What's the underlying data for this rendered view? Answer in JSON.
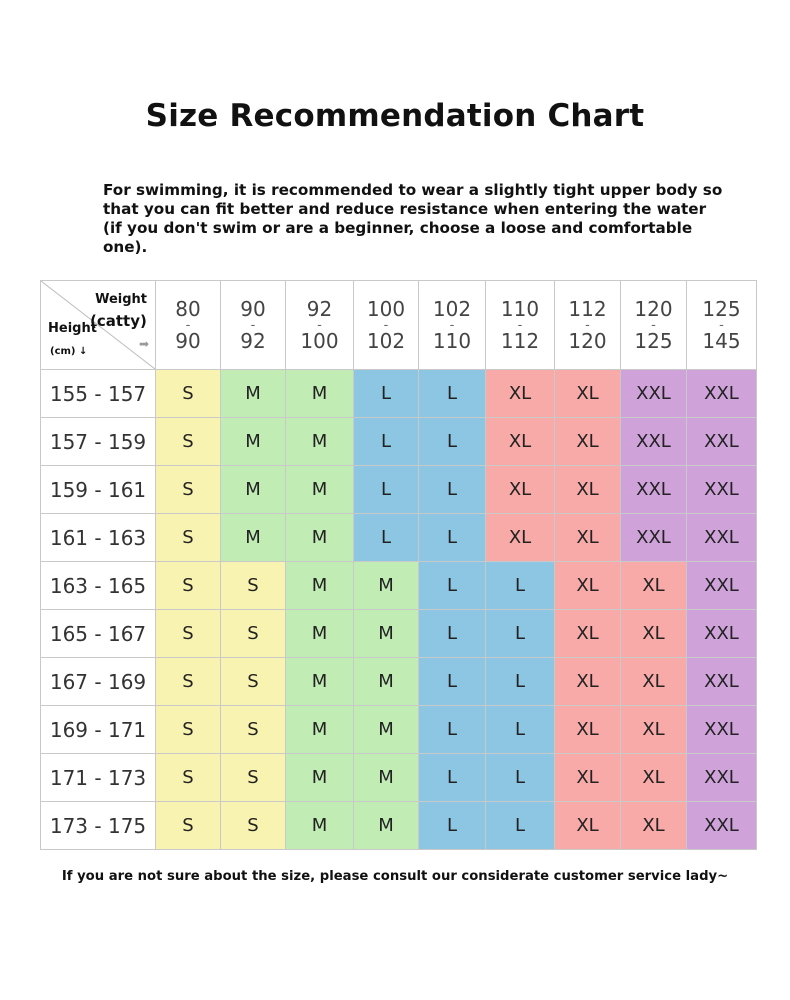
{
  "title": "Size Recommendation Chart",
  "intro": "For swimming, it is recommended to wear a slightly tight upper body so that you can fit better and reduce resistance when entering the water (if you don't swim or are a beginner, choose a loose and comfortable one).",
  "table": {
    "corner": {
      "weight_label": "Weight",
      "weight_unit": "(catty)",
      "height_label": "Height",
      "height_unit": "(cm) ↓",
      "arrow": "➡"
    },
    "weight_columns": [
      {
        "low": "80",
        "high": "90"
      },
      {
        "low": "90",
        "high": "92"
      },
      {
        "low": "92",
        "high": "100"
      },
      {
        "low": "100",
        "high": "102"
      },
      {
        "low": "102",
        "high": "110"
      },
      {
        "low": "110",
        "high": "112"
      },
      {
        "low": "112",
        "high": "120"
      },
      {
        "low": "120",
        "high": "125"
      },
      {
        "low": "125",
        "high": "145"
      }
    ],
    "rows": [
      {
        "height": "155 - 157",
        "sizes": [
          "S",
          "M",
          "M",
          "L",
          "L",
          "XL",
          "XL",
          "XXL",
          "XXL"
        ]
      },
      {
        "height": "157 - 159",
        "sizes": [
          "S",
          "M",
          "M",
          "L",
          "L",
          "XL",
          "XL",
          "XXL",
          "XXL"
        ]
      },
      {
        "height": "159 - 161",
        "sizes": [
          "S",
          "M",
          "M",
          "L",
          "L",
          "XL",
          "XL",
          "XXL",
          "XXL"
        ]
      },
      {
        "height": "161 - 163",
        "sizes": [
          "S",
          "M",
          "M",
          "L",
          "L",
          "XL",
          "XL",
          "XXL",
          "XXL"
        ]
      },
      {
        "height": "163 - 165",
        "sizes": [
          "S",
          "S",
          "M",
          "M",
          "L",
          "L",
          "XL",
          "XL",
          "XXL"
        ]
      },
      {
        "height": "165 - 167",
        "sizes": [
          "S",
          "S",
          "M",
          "M",
          "L",
          "L",
          "XL",
          "XL",
          "XXL"
        ]
      },
      {
        "height": "167 - 169",
        "sizes": [
          "S",
          "S",
          "M",
          "M",
          "L",
          "L",
          "XL",
          "XL",
          "XXL"
        ]
      },
      {
        "height": "169 - 171",
        "sizes": [
          "S",
          "S",
          "M",
          "M",
          "L",
          "L",
          "XL",
          "XL",
          "XXL"
        ]
      },
      {
        "height": "171 - 173",
        "sizes": [
          "S",
          "S",
          "M",
          "M",
          "L",
          "L",
          "XL",
          "XL",
          "XXL"
        ]
      },
      {
        "height": "173 - 175",
        "sizes": [
          "S",
          "S",
          "M",
          "M",
          "L",
          "L",
          "XL",
          "XL",
          "XXL"
        ]
      }
    ],
    "size_colors": {
      "S": "#f8f3b0",
      "M": "#c1edb5",
      "L": "#8cc6e2",
      "XL": "#f7aaa7",
      "XXL": "#cfa3da"
    }
  },
  "footer": "If you are not sure about the size, please consult our considerate customer service lady~"
}
